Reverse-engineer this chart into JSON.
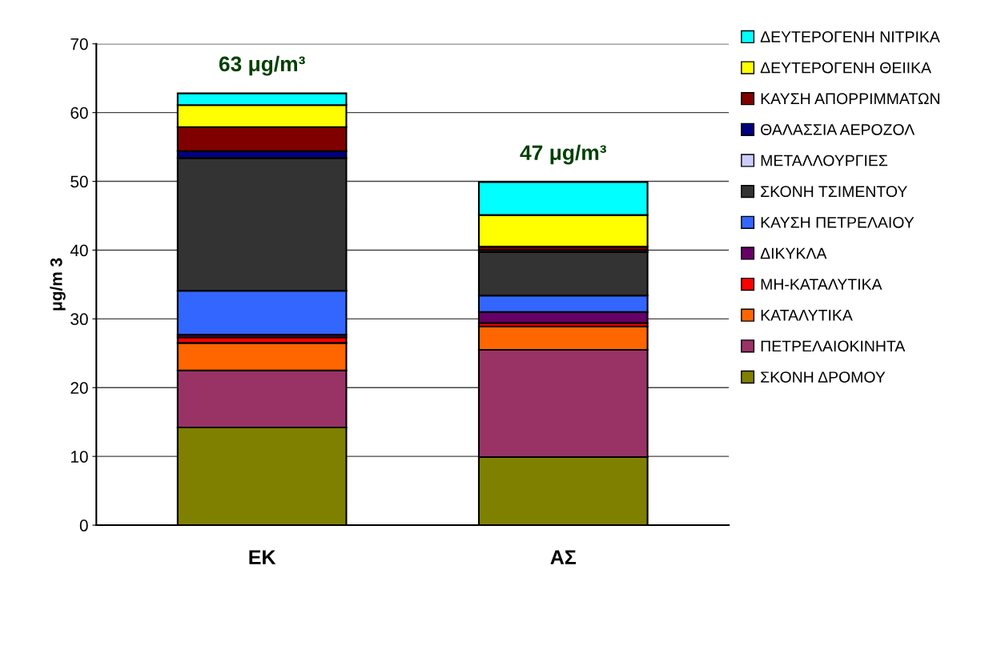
{
  "chart_data": {
    "type": "bar",
    "stacked": true,
    "ylabel": "μg/m 3",
    "categories": [
      "ΕΚ",
      "ΑΣ"
    ],
    "ylim": [
      0,
      70
    ],
    "yticks": [
      0,
      10,
      20,
      30,
      40,
      50,
      60,
      70
    ],
    "grid": "y",
    "legend": "right",
    "annotations": [
      "63 μg/m³",
      "47 μg/m³"
    ],
    "series": [
      {
        "name": "ΣΚΟΝΗ ΔΡΟΜΟΥ",
        "color": "#808000",
        "values": [
          14.2,
          9.9
        ]
      },
      {
        "name": "ΠΕΤΡΕΛΑΙΟΚΙΝΗΤΑ",
        "color": "#993366",
        "values": [
          8.3,
          15.6
        ]
      },
      {
        "name": "ΚΑΤΑΛΥΤΙΚΑ",
        "color": "#ff6600",
        "values": [
          4.0,
          3.4
        ]
      },
      {
        "name": "ΜΗ-ΚΑΤΑΛΥΤΙΚΑ",
        "color": "#ff0000",
        "values": [
          0.8,
          0.5
        ]
      },
      {
        "name": "ΔΙΚΥΚΛΑ",
        "color": "#660066",
        "values": [
          0.4,
          1.6
        ]
      },
      {
        "name": "ΚΑΥΣΗ ΠΕΤΡΕΛΑΙΟΥ",
        "color": "#3366ff",
        "values": [
          6.4,
          2.4
        ]
      },
      {
        "name": "ΣΚΟΝΗ ΤΣΙΜΕΝΤΟΥ",
        "color": "#333333",
        "values": [
          19.3,
          6.3
        ]
      },
      {
        "name": "ΜΕΤΑΛΛΟΥΡΓΙΕΣ",
        "color": "#ccccff",
        "values": [
          null,
          0.3
        ]
      },
      {
        "name": "ΘΑΛΑΣΣΙΑ ΑΕΡΟΖΟΛ",
        "color": "#000080",
        "values": [
          1.0,
          null
        ]
      },
      {
        "name": "ΚΑΥΣΗ ΑΠΟΡΡΙΜΜΑΤΩΝ",
        "color": "#800000",
        "values": [
          3.5,
          0.5
        ]
      },
      {
        "name": "ΔΕΥΤΕΡΟΓΕΝΗ ΘΕΙΙΚΑ",
        "color": "#ffff00",
        "values": [
          3.2,
          4.6
        ]
      },
      {
        "name": "ΔΕΥΤΕΡΟΓΕΝΗ ΝΙΤΡΙΚΑ",
        "color": "#00ffff",
        "values": [
          1.7,
          4.8
        ]
      }
    ]
  }
}
